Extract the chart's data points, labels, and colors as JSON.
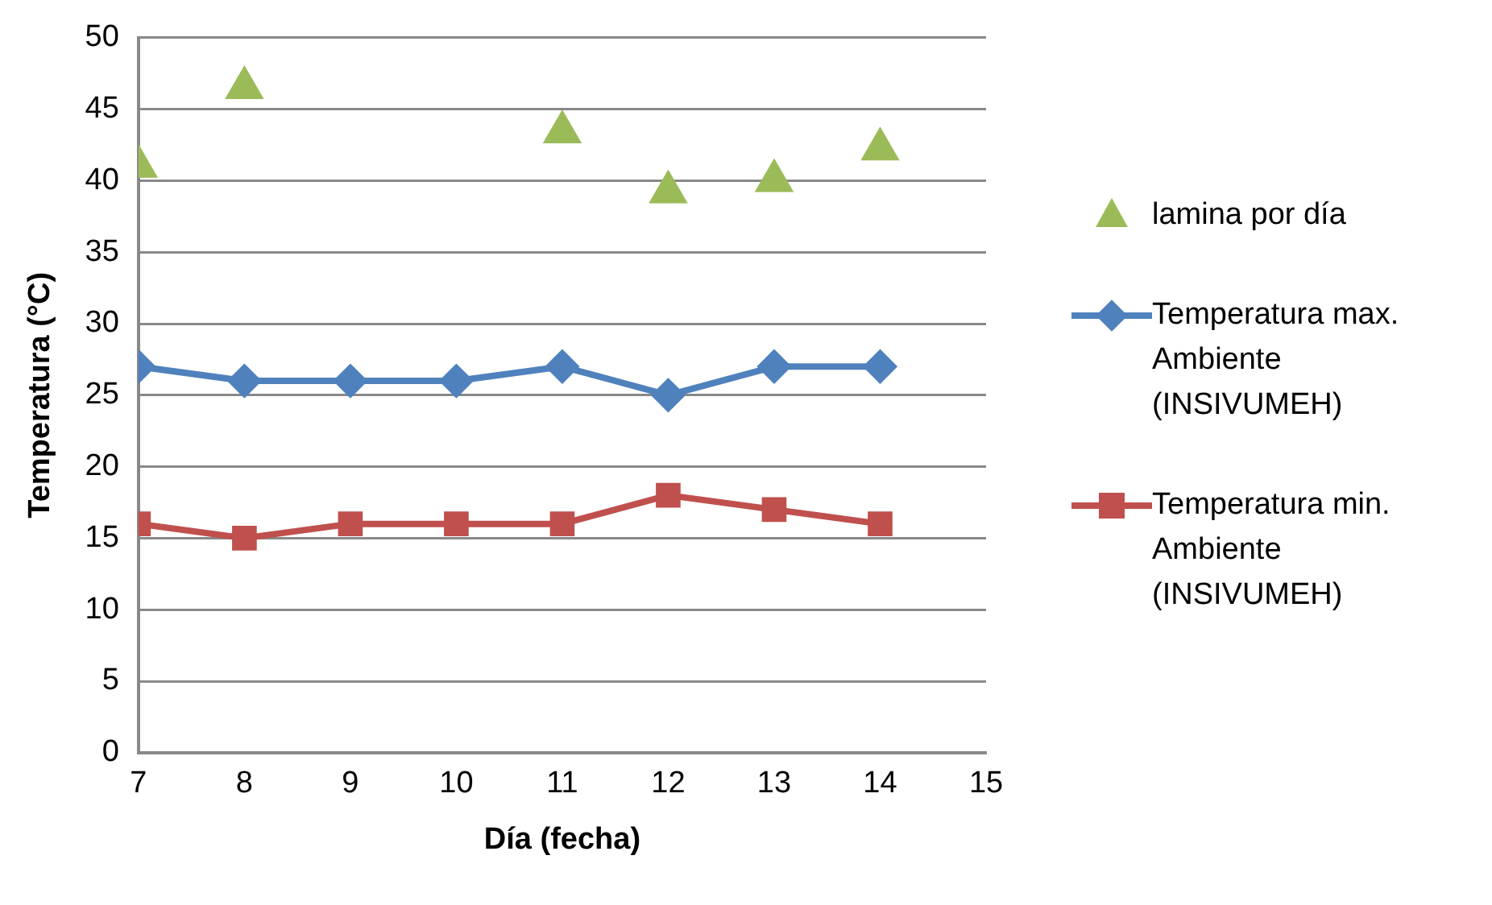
{
  "chart_data": {
    "type": "line",
    "xlabel": "Día (fecha)",
    "ylabel": "Temperatura (°C)",
    "x": [
      7,
      8,
      9,
      10,
      11,
      12,
      13,
      14
    ],
    "series": [
      {
        "name": "lamina por día",
        "type": "scatter",
        "color": "#9bbb59",
        "marker": "triangle",
        "values": [
          41,
          46.5,
          null,
          null,
          43.4,
          39.2,
          40,
          42.2
        ]
      },
      {
        "name": "Temperatura max. Ambiente (INSIVUMEH)",
        "color": "#4f81bd",
        "marker": "diamond",
        "values": [
          27,
          26,
          26,
          26,
          27,
          25,
          27,
          27
        ]
      },
      {
        "name": "Temperatura min. Ambiente (INSIVUMEH)",
        "color": "#c0504d",
        "marker": "square",
        "values": [
          16,
          15,
          16,
          16,
          16,
          18,
          17,
          16
        ]
      }
    ],
    "xlim": [
      7,
      15
    ],
    "xticks": [
      7,
      8,
      9,
      10,
      11,
      12,
      13,
      14,
      15
    ],
    "ylim": [
      0,
      50
    ],
    "yticks": [
      0,
      5,
      10,
      15,
      20,
      25,
      30,
      35,
      40,
      45,
      50
    ],
    "grid": "y",
    "legend": "right"
  }
}
